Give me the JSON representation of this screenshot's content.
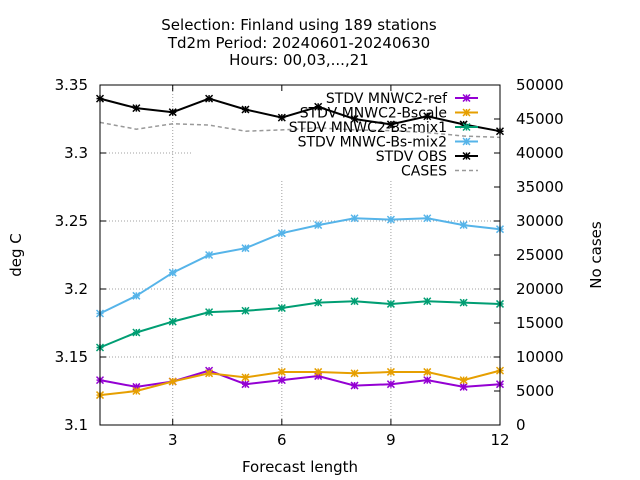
{
  "chart_data": {
    "type": "line",
    "title_lines": [
      "Selection: Finland using   189 stations",
      "Td2m   Period: 20240601-20240630",
      "Hours: 00,03,...,21"
    ],
    "xlabel": "Forecast length",
    "ylabel": "deg C",
    "y2label": "No cases",
    "xlim": [
      1,
      12
    ],
    "ylim": [
      3.1,
      3.35
    ],
    "y2lim": [
      0,
      50000
    ],
    "x_ticks": [
      3,
      6,
      9,
      12
    ],
    "y_ticks": [
      "3.1",
      "3.15",
      "3.2",
      "3.25",
      "3.3",
      "3.35"
    ],
    "y2_ticks": [
      "0",
      "5000",
      "10000",
      "15000",
      "20000",
      "25000",
      "30000",
      "35000",
      "40000",
      "45000",
      "50000"
    ],
    "grid": true,
    "legend_position": "top-right",
    "x": [
      1,
      2,
      3,
      4,
      5,
      6,
      7,
      8,
      9,
      10,
      11,
      12
    ],
    "series": [
      {
        "name": "STDV MNWC2-ref",
        "color": "#9400d3",
        "marker": "star",
        "values": [
          3.133,
          3.128,
          3.132,
          3.14,
          3.13,
          3.133,
          3.136,
          3.129,
          3.13,
          3.133,
          3.128,
          3.13
        ]
      },
      {
        "name": "STDV MNWC2-Bscale",
        "color": "#e69f00",
        "marker": "star",
        "values": [
          3.122,
          3.125,
          3.132,
          3.138,
          3.135,
          3.139,
          3.139,
          3.138,
          3.139,
          3.139,
          3.133,
          3.14
        ]
      },
      {
        "name": "STDV MNWC2-Bs-mix1",
        "color": "#009e73",
        "marker": "star",
        "values": [
          3.157,
          3.168,
          3.176,
          3.183,
          3.184,
          3.186,
          3.19,
          3.191,
          3.189,
          3.191,
          3.19,
          3.189
        ]
      },
      {
        "name": "STDV MNWC-Bs-mix2",
        "color": "#56b4e9",
        "marker": "star",
        "values": [
          3.182,
          3.195,
          3.212,
          3.225,
          3.23,
          3.241,
          3.247,
          3.252,
          3.251,
          3.252,
          3.247,
          3.244
        ]
      },
      {
        "name": "STDV OBS",
        "color": "#000000",
        "marker": "star",
        "values": [
          3.34,
          3.333,
          3.33,
          3.34,
          3.332,
          3.326,
          3.334,
          3.325,
          3.321,
          3.327,
          3.321,
          3.316
        ]
      },
      {
        "name": "CASES",
        "color": "#999999",
        "marker": "none",
        "dashed": true,
        "axis": "y2",
        "values": [
          44500,
          43500,
          44300,
          44100,
          43200,
          43400,
          43700,
          43400,
          43300,
          43000,
          42500,
          42300
        ]
      }
    ]
  }
}
